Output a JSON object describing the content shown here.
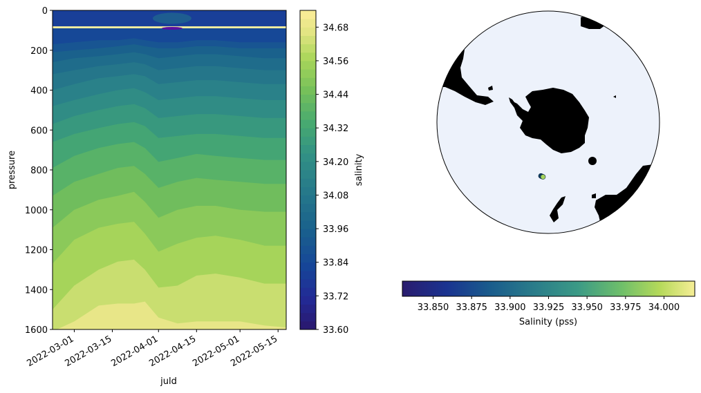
{
  "chart_data": [
    {
      "type": "heatmap",
      "subtype": "filled-contour",
      "xlabel": "juld",
      "ylabel": "pressure",
      "x_ticks": [
        "2022-03-01",
        "2022-03-15",
        "2022-04-01",
        "2022-04-15",
        "2022-05-01",
        "2022-05-15"
      ],
      "y_ticks": [
        0,
        200,
        400,
        600,
        800,
        1000,
        1200,
        1400,
        1600
      ],
      "xlim": [
        "2022-02-21",
        "2022-05-18"
      ],
      "ylim": [
        1600,
        0
      ],
      "y_inverted": true,
      "colormap": "haline",
      "colorbar": {
        "label": "salinity",
        "range": [
          33.6,
          34.74
        ],
        "ticks": [
          33.6,
          33.72,
          33.84,
          33.96,
          34.08,
          34.2,
          34.32,
          34.44,
          34.56,
          34.68
        ],
        "levels": 38,
        "level_step": 0.03
      },
      "isohalines": [
        {
          "value": 34.68,
          "pressure": [
            1610,
            1560,
            1480,
            1470,
            1470,
            1460,
            1540,
            1570,
            1560,
            1560,
            1560,
            1580,
            1590
          ]
        },
        {
          "value": 34.62,
          "pressure": [
            1500,
            1380,
            1300,
            1260,
            1250,
            1300,
            1390,
            1380,
            1330,
            1320,
            1340,
            1370,
            1370
          ]
        },
        {
          "value": 34.56,
          "pressure": [
            1270,
            1150,
            1090,
            1070,
            1060,
            1120,
            1210,
            1170,
            1140,
            1130,
            1150,
            1180,
            1180
          ]
        },
        {
          "value": 34.5,
          "pressure": [
            1090,
            1000,
            950,
            930,
            910,
            960,
            1040,
            1000,
            980,
            980,
            1000,
            1010,
            1010
          ]
        },
        {
          "value": 34.44,
          "pressure": [
            930,
            860,
            820,
            790,
            780,
            820,
            890,
            860,
            840,
            850,
            860,
            870,
            870
          ]
        },
        {
          "value": 34.38,
          "pressure": [
            790,
            730,
            690,
            670,
            660,
            690,
            760,
            740,
            720,
            730,
            740,
            750,
            750
          ]
        },
        {
          "value": 34.32,
          "pressure": [
            660,
            620,
            590,
            570,
            560,
            580,
            640,
            630,
            620,
            620,
            630,
            640,
            640
          ]
        },
        {
          "value": 34.26,
          "pressure": [
            570,
            530,
            500,
            480,
            470,
            490,
            540,
            530,
            520,
            520,
            530,
            540,
            540
          ]
        },
        {
          "value": 34.2,
          "pressure": [
            480,
            450,
            420,
            400,
            390,
            410,
            450,
            440,
            430,
            430,
            440,
            450,
            450
          ]
        },
        {
          "value": 34.14,
          "pressure": [
            400,
            370,
            340,
            330,
            320,
            330,
            370,
            360,
            350,
            350,
            360,
            370,
            370
          ]
        },
        {
          "value": 34.08,
          "pressure": [
            320,
            300,
            280,
            270,
            260,
            270,
            300,
            290,
            280,
            280,
            290,
            300,
            300
          ]
        },
        {
          "value": 34.02,
          "pressure": [
            260,
            240,
            230,
            220,
            210,
            220,
            240,
            230,
            220,
            220,
            230,
            240,
            240
          ]
        },
        {
          "value": 33.96,
          "pressure": [
            210,
            200,
            190,
            180,
            170,
            180,
            190,
            190,
            180,
            180,
            190,
            190,
            190
          ]
        },
        {
          "value": 33.9,
          "pressure": [
            170,
            160,
            150,
            150,
            140,
            150,
            160,
            160,
            150,
            150,
            160,
            160,
            160
          ]
        },
        {
          "value": 33.84,
          "pressure": [
            90,
            90,
            90,
            90,
            90,
            90,
            90,
            90,
            90,
            90,
            90,
            90,
            90
          ]
        }
      ],
      "isohaline_dates": [
        "2022-02-21",
        "2022-03-01",
        "2022-03-10",
        "2022-03-17",
        "2022-03-23",
        "2022-03-27",
        "2022-04-01",
        "2022-04-08",
        "2022-04-15",
        "2022-04-22",
        "2022-05-01",
        "2022-05-10",
        "2022-05-18"
      ]
    },
    {
      "type": "scatter",
      "subtype": "south-polar-stereographic-map",
      "colorbar": {
        "label": "Salinity (pss)",
        "orientation": "horizontal",
        "range": [
          33.83,
          34.02
        ],
        "ticks": [
          33.85,
          33.875,
          33.9,
          33.925,
          33.95,
          33.975,
          34.0
        ],
        "tick_labels": [
          "33.850",
          "33.875",
          "33.900",
          "33.925",
          "33.950",
          "33.975",
          "34.000"
        ]
      },
      "colors": {
        "ocean": "#edf2fb",
        "land": "#000000",
        "boundary": "#000000"
      },
      "points": [
        {
          "lon": -7.8,
          "lat": -58.6,
          "salinity": 33.93
        },
        {
          "lon": -7.2,
          "lat": -58.5,
          "salinity": 33.87
        },
        {
          "lon": -6.6,
          "lat": -58.4,
          "salinity": 33.9
        },
        {
          "lon": -6.0,
          "lat": -58.3,
          "salinity": 33.95
        },
        {
          "lon": -5.4,
          "lat": -58.2,
          "salinity": 33.99
        }
      ]
    }
  ]
}
